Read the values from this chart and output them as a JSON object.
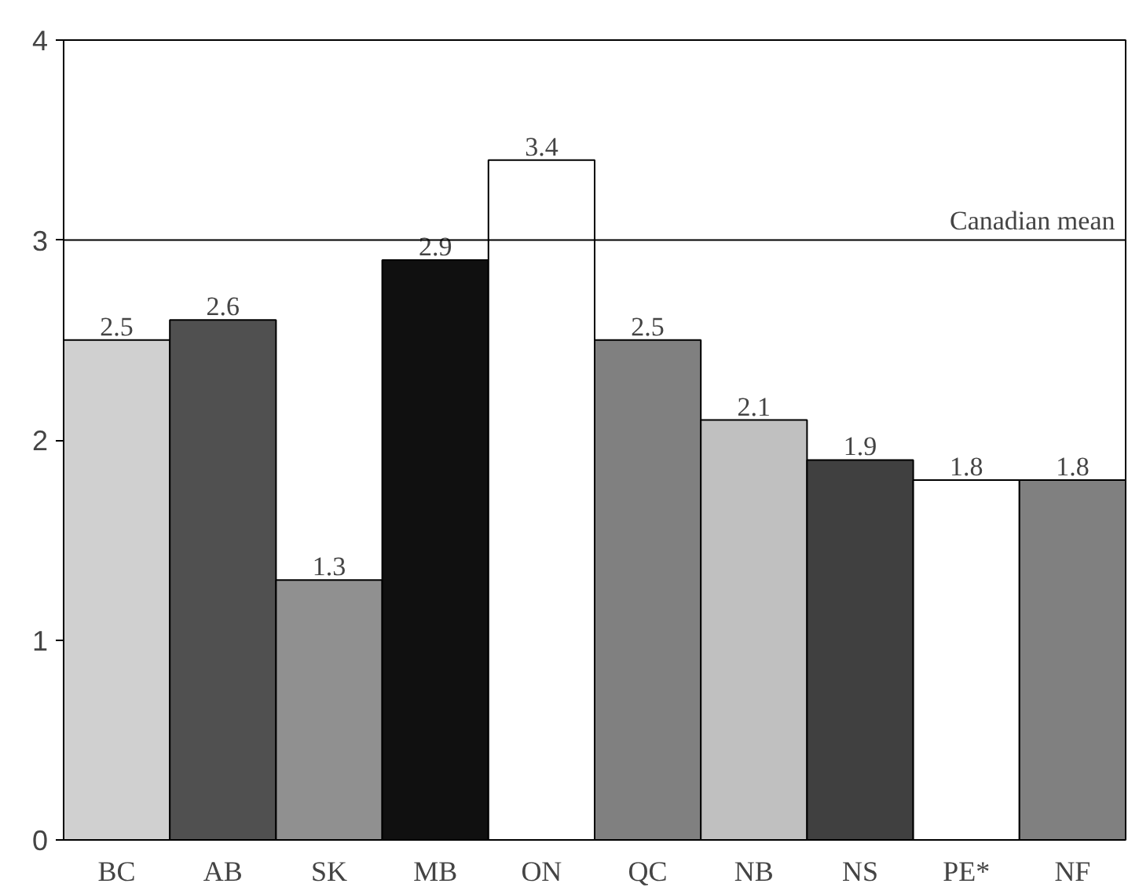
{
  "chart_data": {
    "type": "bar",
    "categories": [
      "BC",
      "AB",
      "SK",
      "MB",
      "ON",
      "QC",
      "NB",
      "NS",
      "PE*",
      "NF"
    ],
    "values": [
      2.5,
      2.6,
      1.3,
      2.9,
      3.4,
      2.5,
      2.1,
      1.9,
      1.8,
      1.8
    ],
    "colors": [
      "#d0d0d0",
      "#505050",
      "#909090",
      "#101010",
      "#ffffff",
      "#808080",
      "#c0c0c0",
      "#404040",
      "#ffffff",
      "#808080"
    ],
    "ylim": [
      0,
      4
    ],
    "yticks": [
      0,
      1,
      2,
      3,
      4
    ],
    "grid": false,
    "data_labels": true,
    "ref_lines": [
      {
        "axis": "y",
        "value": 3,
        "label": "Canadian mean",
        "color": "#000000"
      }
    ]
  }
}
